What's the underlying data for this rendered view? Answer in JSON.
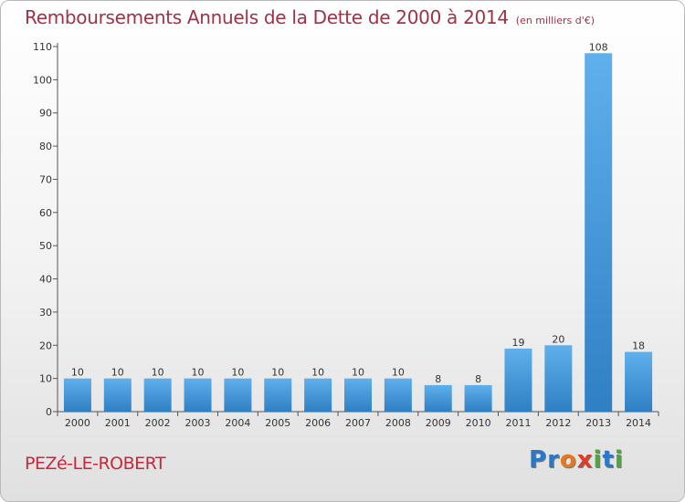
{
  "chart_data": {
    "type": "bar",
    "title": "Remboursements Annuels de la Dette de 2000 à 2014",
    "unit_note": "(en milliers d'€)",
    "xlabel": "",
    "ylabel": "",
    "categories": [
      "2000",
      "2001",
      "2002",
      "2003",
      "2004",
      "2005",
      "2006",
      "2007",
      "2008",
      "2009",
      "2010",
      "2011",
      "2012",
      "2013",
      "2014"
    ],
    "values": [
      10,
      10,
      10,
      10,
      10,
      10,
      10,
      10,
      10,
      8,
      8,
      19,
      20,
      108,
      18
    ],
    "ylim": [
      0,
      110
    ],
    "yticks": [
      0,
      10,
      20,
      30,
      40,
      50,
      60,
      70,
      80,
      90,
      100,
      110
    ],
    "grid": false,
    "legend": "none"
  },
  "footer": {
    "place": "PEZé-LE-ROBERT",
    "logo_letters": [
      "P",
      "r",
      "o",
      "x",
      "i",
      "t",
      "i"
    ]
  },
  "colors": {
    "title": "#a03246",
    "place": "#c8283c",
    "bar_light": "#5fb0ec",
    "bar_dark": "#2f7fc4",
    "axis": "#555555",
    "logo": [
      "#2a78c8",
      "#2a78c8",
      "#e8781e",
      "#e03c28",
      "#4aa83c",
      "#2a78c8",
      "#4aa83c"
    ]
  }
}
